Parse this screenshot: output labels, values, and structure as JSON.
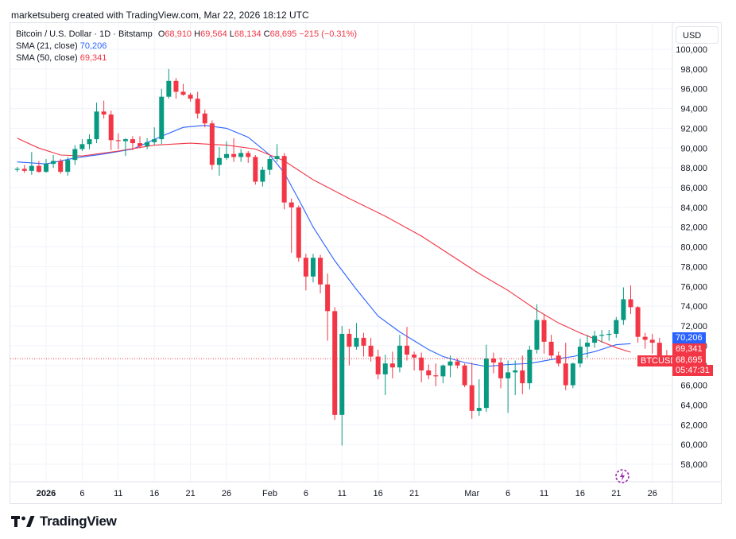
{
  "caption": "marketsuberg created with TradingView.com, Mar 22, 2026 18:12 UTC",
  "legend": {
    "symbol": "Bitcoin / U.S. Dollar · 1D · Bitstamp",
    "o_label": "O",
    "o_value": "68,910",
    "h_label": "H",
    "h_value": "69,564",
    "l_label": "L",
    "l_value": "68,134",
    "c_label": "C",
    "c_value": "68,695",
    "change": "−215 (−0.31%)",
    "sma21_label": "SMA (21, close)",
    "sma21_value": "70,206",
    "sma50_label": "SMA (50, close)",
    "sma50_value": "69,341"
  },
  "currency": "USD",
  "badges": {
    "sma21": "70,206",
    "sma50": "69,341",
    "ticker": "BTCUSD",
    "last_price": "68,695",
    "countdown": "05:47:31"
  },
  "brand": "TradingView",
  "colors": {
    "up": "#089981",
    "down": "#f23645",
    "sma21": "#2962ff",
    "sma50": "#f23645"
  },
  "chart_data": {
    "type": "candlestick",
    "title": "Bitcoin / U.S. Dollar · 1D · Bitstamp",
    "ylim": [
      57000,
      101000
    ],
    "y_ticks": [
      58000,
      60000,
      62000,
      64000,
      66000,
      68000,
      70000,
      72000,
      74000,
      76000,
      78000,
      80000,
      82000,
      84000,
      86000,
      88000,
      90000,
      92000,
      94000,
      96000,
      98000,
      100000
    ],
    "y_tick_labels": [
      "58,000",
      "60,000",
      "62,000",
      "64,000",
      "66,000",
      "68,000",
      "70,000",
      "72,000",
      "74,000",
      "76,000",
      "78,000",
      "80,000",
      "82,000",
      "84,000",
      "86,000",
      "88,000",
      "90,000",
      "92,000",
      "94,000",
      "96,000",
      "98,000",
      "100,000"
    ],
    "x_tick_labels": [
      {
        "label": "2026",
        "day": 0,
        "bold": true
      },
      {
        "label": "6",
        "day": 5
      },
      {
        "label": "11",
        "day": 10
      },
      {
        "label": "16",
        "day": 15
      },
      {
        "label": "21",
        "day": 20
      },
      {
        "label": "26",
        "day": 25
      },
      {
        "label": "Feb",
        "day": 31
      },
      {
        "label": "6",
        "day": 36
      },
      {
        "label": "11",
        "day": 41
      },
      {
        "label": "16",
        "day": 46
      },
      {
        "label": "21",
        "day": 51
      },
      {
        "label": "Mar",
        "day": 59
      },
      {
        "label": "6",
        "day": 64
      },
      {
        "label": "11",
        "day": 69
      },
      {
        "label": "16",
        "day": 74
      },
      {
        "label": "21",
        "day": 79
      },
      {
        "label": "26",
        "day": 84
      }
    ],
    "candles_start_day": -4,
    "candles": [
      [
        87800,
        88100,
        87600,
        87900
      ],
      [
        87900,
        88300,
        87500,
        87700
      ],
      [
        87700,
        89600,
        87300,
        88200
      ],
      [
        88200,
        88700,
        87500,
        87600
      ],
      [
        87600,
        88900,
        87500,
        88400
      ],
      [
        88400,
        89300,
        88000,
        88700
      ],
      [
        88700,
        88900,
        87400,
        87600
      ],
      [
        87600,
        89100,
        87200,
        88800
      ],
      [
        88800,
        90300,
        88300,
        89900
      ],
      [
        89900,
        90900,
        89700,
        90400
      ],
      [
        90400,
        91400,
        89900,
        90900
      ],
      [
        90900,
        94600,
        90500,
        93700
      ],
      [
        93700,
        94800,
        93000,
        93400
      ],
      [
        93400,
        93800,
        89800,
        90800
      ],
      [
        90800,
        91500,
        89900,
        90700
      ],
      [
        90700,
        91000,
        89200,
        90900
      ],
      [
        90900,
        91200,
        89800,
        90500
      ],
      [
        90500,
        91200,
        90000,
        90200
      ],
      [
        90200,
        91000,
        89900,
        90600
      ],
      [
        90600,
        92100,
        90300,
        90900
      ],
      [
        90900,
        96000,
        90400,
        95200
      ],
      [
        95200,
        98000,
        95000,
        96800
      ],
      [
        96800,
        97100,
        95000,
        95700
      ],
      [
        95700,
        96500,
        95300,
        95400
      ],
      [
        95400,
        95600,
        94700,
        95000
      ],
      [
        95000,
        95700,
        93000,
        93500
      ],
      [
        93500,
        93900,
        92100,
        92500
      ],
      [
        92500,
        92800,
        87800,
        88300
      ],
      [
        88300,
        90100,
        87200,
        89000
      ],
      [
        89000,
        90700,
        88800,
        89400
      ],
      [
        89400,
        91000,
        88600,
        89100
      ],
      [
        89100,
        89900,
        88600,
        89500
      ],
      [
        89500,
        89700,
        88500,
        89100
      ],
      [
        89100,
        89300,
        86300,
        86600
      ],
      [
        86600,
        88100,
        86100,
        87800
      ],
      [
        87800,
        89200,
        87300,
        88900
      ],
      [
        88900,
        90400,
        88600,
        89200
      ],
      [
        89200,
        89500,
        83800,
        84500
      ],
      [
        84500,
        84900,
        79400,
        84000
      ],
      [
        84000,
        84200,
        78500,
        78900
      ],
      [
        78900,
        79300,
        75600,
        77000
      ],
      [
        77000,
        79300,
        76400,
        78900
      ],
      [
        78900,
        79200,
        75300,
        76200
      ],
      [
        76200,
        77300,
        70500,
        73500
      ],
      [
        73500,
        73900,
        62500,
        63000
      ],
      [
        63000,
        72000,
        59900,
        71200
      ],
      [
        71200,
        71700,
        68000,
        69900
      ],
      [
        69900,
        72300,
        69600,
        70800
      ],
      [
        70800,
        71300,
        68900,
        70000
      ],
      [
        70000,
        70800,
        68400,
        68900
      ],
      [
        68900,
        69600,
        66600,
        67100
      ],
      [
        67100,
        69100,
        65000,
        68200
      ],
      [
        68200,
        69400,
        66700,
        67800
      ],
      [
        67800,
        71100,
        67300,
        70000
      ],
      [
        70000,
        71900,
        68500,
        69100
      ],
      [
        69100,
        69400,
        67500,
        68800
      ],
      [
        68800,
        69300,
        66300,
        67500
      ],
      [
        67500,
        68100,
        66600,
        67000
      ],
      [
        67000,
        68200,
        65900,
        66900
      ],
      [
        66900,
        68100,
        66200,
        68000
      ],
      [
        68000,
        69000,
        66800,
        68400
      ],
      [
        68400,
        68700,
        67700,
        68000
      ],
      [
        68000,
        68200,
        65800,
        66000
      ],
      [
        66000,
        68300,
        62600,
        63400
      ],
      [
        63400,
        66600,
        62900,
        63700
      ],
      [
        63700,
        70100,
        63300,
        68700
      ],
      [
        68700,
        69300,
        67200,
        68300
      ],
      [
        68300,
        68800,
        65700,
        66700
      ],
      [
        66700,
        68500,
        63200,
        67300
      ],
      [
        67300,
        68500,
        65000,
        67500
      ],
      [
        67500,
        69000,
        65100,
        66200
      ],
      [
        66200,
        70000,
        65600,
        69600
      ],
      [
        69600,
        74200,
        69200,
        72600
      ],
      [
        72600,
        73200,
        69200,
        70400
      ],
      [
        70400,
        71100,
        68700,
        69000
      ],
      [
        69000,
        69400,
        67900,
        68200
      ],
      [
        68200,
        70300,
        65500,
        66000
      ],
      [
        66000,
        68300,
        65700,
        68200
      ],
      [
        68200,
        70700,
        67800,
        69900
      ],
      [
        69900,
        71100,
        68800,
        70300
      ],
      [
        70300,
        71500,
        69800,
        71000
      ],
      [
        71000,
        71600,
        70300,
        71100
      ],
      [
        71100,
        71600,
        70500,
        71200
      ],
      [
        71200,
        72900,
        70800,
        72600
      ],
      [
        72600,
        75900,
        72100,
        74700
      ],
      [
        74700,
        76100,
        73200,
        73900
      ],
      [
        73900,
        74000,
        70300,
        70900
      ],
      [
        70900,
        71300,
        69700,
        70600
      ],
      [
        70600,
        71200,
        69200,
        70300
      ],
      [
        70300,
        70800,
        68200,
        68910
      ],
      [
        68910,
        69564,
        68134,
        68695
      ]
    ],
    "series": [
      {
        "name": "SMA (21, close)",
        "color": "#2962ff",
        "points": [
          [
            -4,
            88600
          ],
          [
            0,
            88400
          ],
          [
            4,
            89000
          ],
          [
            8,
            89400
          ],
          [
            12,
            89900
          ],
          [
            16,
            91200
          ],
          [
            19,
            92100
          ],
          [
            22,
            92300
          ],
          [
            25,
            92000
          ],
          [
            28,
            91100
          ],
          [
            31,
            89300
          ],
          [
            33,
            87500
          ],
          [
            35,
            84800
          ],
          [
            37,
            82000
          ],
          [
            40,
            78600
          ],
          [
            43,
            75700
          ],
          [
            46,
            73000
          ],
          [
            49,
            71400
          ],
          [
            51,
            70500
          ],
          [
            53,
            69600
          ],
          [
            55,
            68900
          ],
          [
            58,
            68300
          ],
          [
            61,
            67900
          ],
          [
            64,
            68100
          ],
          [
            67,
            68200
          ],
          [
            70,
            68600
          ],
          [
            73,
            68900
          ],
          [
            76,
            69400
          ],
          [
            79,
            70100
          ],
          [
            81,
            70206
          ]
        ]
      },
      {
        "name": "SMA (50, close)",
        "color": "#f23645",
        "points": [
          [
            -4,
            91000
          ],
          [
            -1,
            90000
          ],
          [
            2,
            89300
          ],
          [
            5,
            89200
          ],
          [
            10,
            89700
          ],
          [
            15,
            90300
          ],
          [
            20,
            90500
          ],
          [
            25,
            90300
          ],
          [
            29,
            89900
          ],
          [
            33,
            88700
          ],
          [
            37,
            86800
          ],
          [
            42,
            84900
          ],
          [
            47,
            83100
          ],
          [
            52,
            81100
          ],
          [
            56,
            79200
          ],
          [
            60,
            77300
          ],
          [
            64,
            75600
          ],
          [
            68,
            73600
          ],
          [
            71,
            72300
          ],
          [
            74,
            71300
          ],
          [
            77,
            70400
          ],
          [
            79,
            69800
          ],
          [
            81,
            69341
          ]
        ]
      }
    ]
  }
}
